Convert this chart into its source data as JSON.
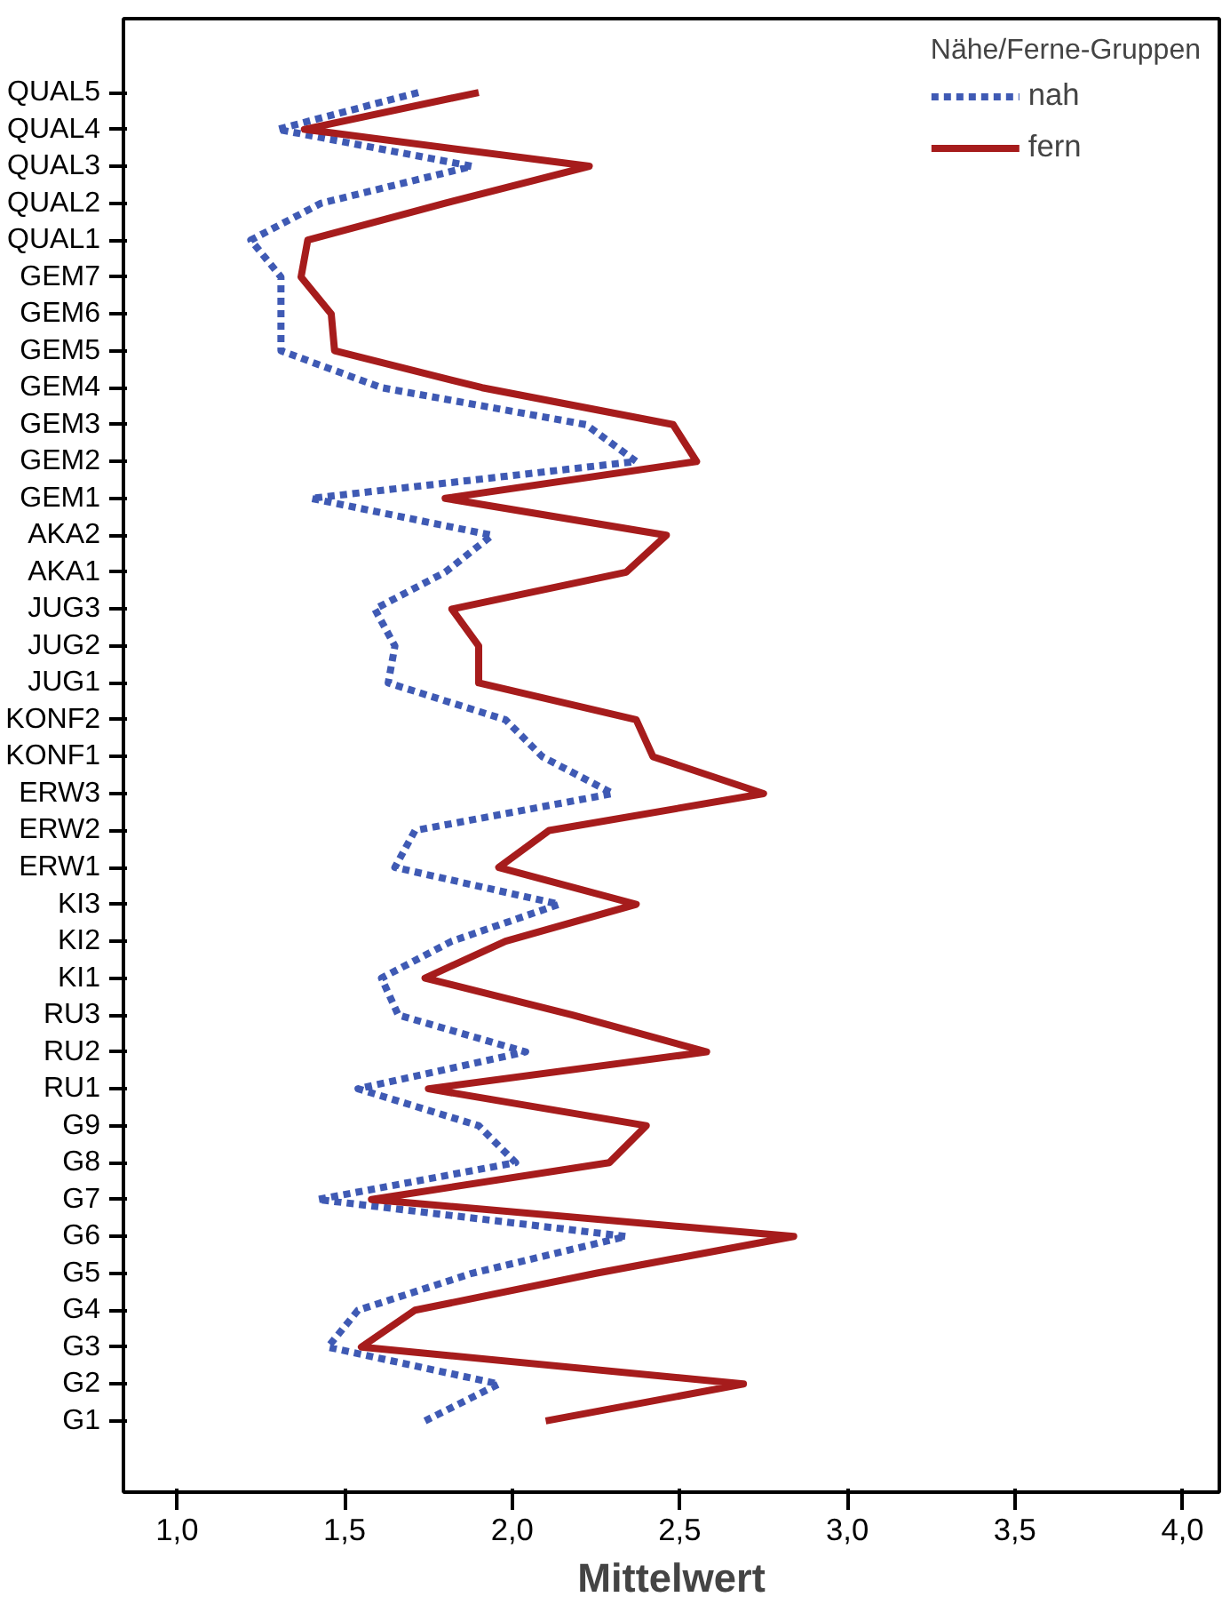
{
  "chart_data": {
    "type": "line",
    "orientation": "horizontal",
    "xlabel": "Mittelwert",
    "legend_title": "Nähe/Ferne-Gruppen",
    "legend": "top right",
    "grid": false,
    "marker": "none",
    "categories": [
      "QUAL5",
      "QUAL4",
      "QUAL3",
      "QUAL2",
      "QUAL1",
      "GEM7",
      "GEM6",
      "GEM5",
      "GEM4",
      "GEM3",
      "GEM2",
      "GEM1",
      "AKA2",
      "AKA1",
      "JUG3",
      "JUG2",
      "JUG1",
      "KONF2",
      "KONF1",
      "ERW3",
      "ERW2",
      "ERW1",
      "KI3",
      "KI2",
      "KI1",
      "RU3",
      "RU2",
      "RU1",
      "G9",
      "G8",
      "G7",
      "G6",
      "G5",
      "G4",
      "G3",
      "G2",
      "G1"
    ],
    "xlim": [
      0.84,
      4.11
    ],
    "xticks": [
      {
        "value": 1,
        "label": "1,0"
      },
      {
        "value": 1.5,
        "label": "1,5"
      },
      {
        "value": 2,
        "label": "2,0"
      },
      {
        "value": 2.5,
        "label": "2,5"
      },
      {
        "value": 3,
        "label": "3,0"
      },
      {
        "value": 3.5,
        "label": "3,5"
      },
      {
        "value": 4,
        "label": "4,0"
      }
    ],
    "series": [
      {
        "name": "nah",
        "color": "#3f5ab4",
        "line_style": "dashed",
        "values": [
          1.72,
          1.3,
          1.88,
          1.43,
          1.22,
          1.31,
          1.31,
          1.31,
          1.61,
          2.22,
          2.37,
          1.4,
          1.94,
          1.8,
          1.59,
          1.65,
          1.63,
          1.98,
          2.09,
          2.3,
          1.71,
          1.65,
          2.14,
          1.82,
          1.61,
          1.66,
          2.04,
          1.54,
          1.9,
          2.01,
          1.42,
          2.34,
          1.88,
          1.54,
          1.45,
          1.96,
          1.74
        ]
      },
      {
        "name": "fern",
        "color": "#a61c1c",
        "line_style": "solid",
        "values": [
          1.9,
          1.38,
          2.23,
          1.8,
          1.39,
          1.37,
          1.46,
          1.47,
          1.91,
          2.48,
          2.55,
          1.8,
          2.46,
          2.34,
          1.82,
          1.9,
          1.9,
          2.37,
          2.42,
          2.75,
          2.11,
          1.96,
          2.37,
          1.98,
          1.74,
          2.18,
          2.58,
          1.75,
          2.4,
          2.29,
          1.58,
          2.84,
          2.25,
          1.71,
          1.55,
          2.69,
          2.1
        ]
      }
    ]
  }
}
